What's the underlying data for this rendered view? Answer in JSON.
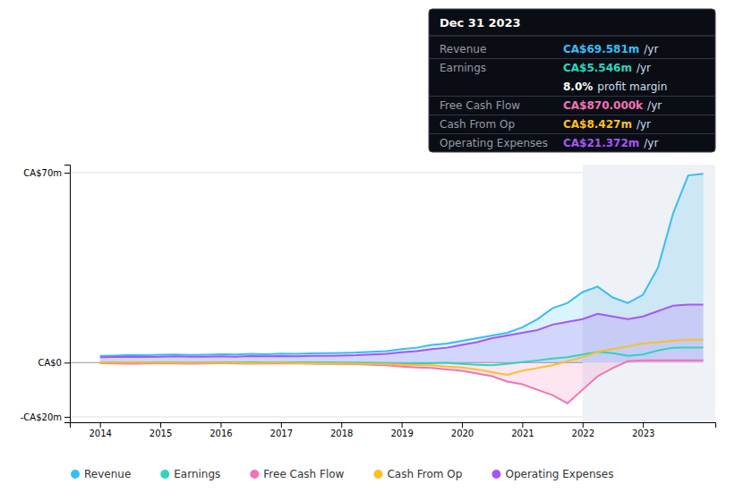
{
  "chart_data": {
    "type": "line",
    "x": [
      2014,
      2014.25,
      2014.5,
      2014.75,
      2015,
      2015.25,
      2015.5,
      2015.75,
      2016,
      2016.25,
      2016.5,
      2016.75,
      2017,
      2017.25,
      2017.5,
      2017.75,
      2018,
      2018.25,
      2018.5,
      2018.75,
      2019,
      2019.25,
      2019.5,
      2019.75,
      2020,
      2020.25,
      2020.5,
      2020.75,
      2021,
      2021.25,
      2021.5,
      2021.75,
      2022,
      2022.25,
      2022.5,
      2022.75,
      2023,
      2023.25,
      2023.5,
      2023.75,
      2024
    ],
    "series": [
      {
        "name": "Revenue",
        "color": "#38bdf8",
        "type": "area",
        "values": [
          2.5,
          2.6,
          2.8,
          2.7,
          2.9,
          3.0,
          2.8,
          2.9,
          3.1,
          3.0,
          3.2,
          3.1,
          3.3,
          3.2,
          3.4,
          3.5,
          3.6,
          3.7,
          4.0,
          4.2,
          5.0,
          5.5,
          6.5,
          7.0,
          8.0,
          9.0,
          10.0,
          11.0,
          13.0,
          16.0,
          20.0,
          22.0,
          26.0,
          28.0,
          24.0,
          22.0,
          25.0,
          35.0,
          55.0,
          69.0,
          69.58
        ]
      },
      {
        "name": "Earnings",
        "color": "#2dd4bf",
        "type": "line",
        "values": [
          0.1,
          0.08,
          0.05,
          0.05,
          0.1,
          0.08,
          0.05,
          0.06,
          0.08,
          0.07,
          0.06,
          0.07,
          0.1,
          0.08,
          0.09,
          0.1,
          0.05,
          0.02,
          -0.1,
          -0.2,
          -0.5,
          -0.3,
          -0.2,
          -0.1,
          -0.5,
          -0.8,
          -1.0,
          -0.5,
          0.2,
          0.8,
          1.5,
          2.0,
          3.0,
          4.0,
          3.5,
          2.5,
          3.0,
          4.5,
          5.5,
          5.546,
          5.546
        ]
      },
      {
        "name": "Free Cash Flow",
        "color": "#f472b6",
        "type": "area",
        "values": [
          -0.2,
          -0.3,
          -0.4,
          -0.3,
          -0.2,
          -0.3,
          -0.4,
          -0.3,
          -0.2,
          -0.3,
          -0.4,
          -0.3,
          -0.2,
          -0.3,
          -0.4,
          -0.5,
          -0.5,
          -0.6,
          -0.8,
          -1.0,
          -1.5,
          -1.8,
          -2.0,
          -2.5,
          -3.0,
          -4.0,
          -5.0,
          -7.0,
          -8.0,
          -10.0,
          -12.0,
          -15.0,
          -10.0,
          -5.0,
          -2.0,
          0.5,
          0.87,
          0.87,
          0.87,
          0.87,
          0.87
        ]
      },
      {
        "name": "Cash From Op",
        "color": "#fbbf24",
        "type": "line",
        "values": [
          0.0,
          0.0,
          0.0,
          0.0,
          -0.1,
          -0.1,
          -0.1,
          -0.1,
          -0.1,
          -0.1,
          -0.2,
          -0.1,
          -0.1,
          -0.2,
          -0.2,
          -0.3,
          -0.3,
          -0.4,
          -0.5,
          -0.6,
          -0.8,
          -0.9,
          -1.0,
          -1.5,
          -1.8,
          -2.5,
          -3.5,
          -4.5,
          -3.0,
          -2.0,
          -1.0,
          0.5,
          2.0,
          4.0,
          5.0,
          6.0,
          7.0,
          7.5,
          8.0,
          8.427,
          8.427
        ]
      },
      {
        "name": "Operating Expenses",
        "color": "#a855f7",
        "type": "area",
        "values": [
          2.0,
          2.1,
          2.2,
          2.1,
          2.2,
          2.3,
          2.2,
          2.2,
          2.3,
          2.2,
          2.4,
          2.3,
          2.4,
          2.3,
          2.5,
          2.5,
          2.6,
          2.7,
          3.0,
          3.2,
          3.8,
          4.2,
          5.0,
          5.5,
          6.5,
          7.5,
          9.0,
          10.0,
          11.0,
          12.0,
          14.0,
          15.0,
          16.0,
          18.0,
          17.0,
          16.0,
          17.0,
          19.0,
          21.0,
          21.372,
          21.372
        ]
      }
    ],
    "xlim": [
      2013.5,
      2024.2
    ],
    "ylim": [
      -22,
      73
    ],
    "xticks": [
      2014,
      2015,
      2016,
      2017,
      2018,
      2019,
      2020,
      2021,
      2022,
      2023
    ],
    "yticks": [
      {
        "value": -20,
        "label": "-CA$20m"
      },
      {
        "value": 0,
        "label": "CA$0"
      },
      {
        "value": 70,
        "label": "CA$70m"
      }
    ],
    "grid": true,
    "legend": "bottom",
    "highlight_x": [
      2022,
      2024.2
    ],
    "annotations": {
      "title": "Dec 31 2023",
      "rows": [
        {
          "label": "Revenue",
          "value": "CA$69.581m",
          "suffix": "/yr",
          "color": "#38bdf8"
        },
        {
          "label": "Earnings",
          "value": "CA$5.546m",
          "suffix": "/yr",
          "color": "#2dd4bf"
        },
        {
          "value": "8.0%",
          "suffix": "profit margin",
          "color": "#ffffff"
        },
        {
          "label": "Free Cash Flow",
          "value": "CA$870.000k",
          "suffix": "/yr",
          "color": "#f472b6"
        },
        {
          "label": "Cash From Op",
          "value": "CA$8.427m",
          "suffix": "/yr",
          "color": "#fbbf24"
        },
        {
          "label": "Operating Expenses",
          "value": "CA$21.372m",
          "suffix": "/yr",
          "color": "#a855f7"
        }
      ]
    }
  }
}
